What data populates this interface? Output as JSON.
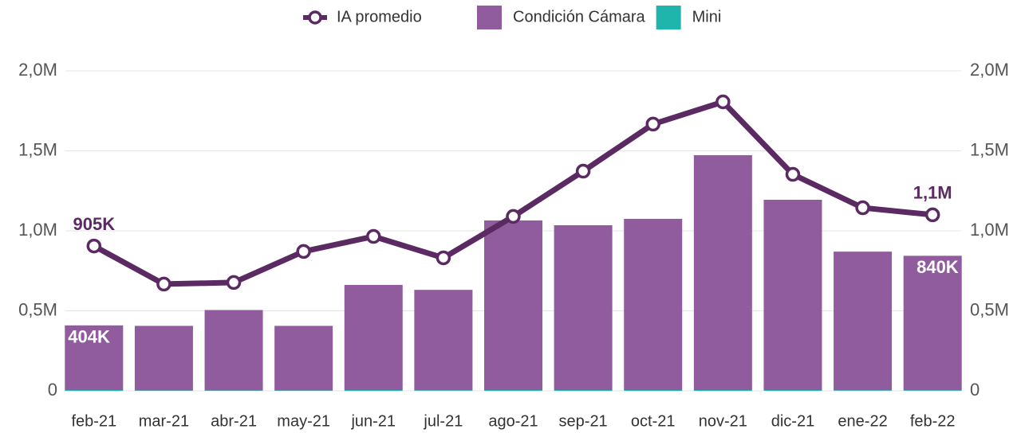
{
  "chart_data": {
    "type": "combo",
    "categories": [
      "feb-21",
      "mar-21",
      "abr-21",
      "may-21",
      "jun-21",
      "jul-21",
      "ago-21",
      "sep-21",
      "oct-21",
      "nov-21",
      "dic-21",
      "ene-22",
      "feb-22"
    ],
    "series": [
      {
        "name": "IA promedio",
        "type": "line",
        "axis": "y2",
        "color": "#5b2a63",
        "values": [
          905000,
          667000,
          677000,
          871000,
          965000,
          831000,
          1090000,
          1373000,
          1667000,
          1806000,
          1353000,
          1144000,
          1100000
        ],
        "value_labels": [
          "905K",
          null,
          null,
          null,
          null,
          null,
          null,
          null,
          null,
          null,
          null,
          null,
          "1,1M"
        ]
      },
      {
        "name": "Condición Cámara",
        "type": "bar",
        "color": "#905c9e",
        "values": [
          404000,
          403000,
          502000,
          403000,
          657000,
          627000,
          1060000,
          1030000,
          1070000,
          1468000,
          1189000,
          866000,
          840000
        ],
        "value_labels": [
          "404K",
          null,
          null,
          null,
          null,
          null,
          null,
          null,
          null,
          null,
          null,
          null,
          "840K"
        ]
      },
      {
        "name": "Mini",
        "type": "bar",
        "color": "#1fb5ad",
        "values": [
          5000,
          3000,
          3000,
          3000,
          5000,
          4000,
          5000,
          5000,
          5000,
          5000,
          5000,
          4000,
          4000
        ]
      }
    ],
    "ylim": [
      0,
      2000000
    ],
    "yticks": [
      0,
      {
        "value": 500000,
        "label": "0,5M"
      },
      {
        "value": 1000000,
        "label": "1,0M"
      },
      {
        "value": 1500000,
        "label": "1,5M"
      },
      {
        "value": 2000000,
        "label": "2,0M"
      }
    ],
    "y2lim": [
      0,
      2000000
    ],
    "y2ticks": [
      0,
      {
        "value": 500000,
        "label": "0,5M"
      },
      {
        "value": 1000000,
        "label": "1,0M"
      },
      {
        "value": 1500000,
        "label": "1,5M"
      },
      {
        "value": 2000000,
        "label": "2,0M"
      }
    ],
    "grid": true,
    "legend": "top"
  }
}
